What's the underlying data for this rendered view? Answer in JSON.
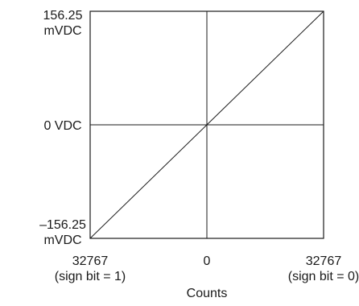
{
  "chart_data": {
    "type": "line",
    "title": "",
    "xlabel": "Counts",
    "ylabel": "",
    "x_ticks": [
      {
        "lines": [
          "32767",
          "(sign bit = 1)"
        ],
        "value": -32767
      },
      {
        "lines": [
          "0"
        ],
        "value": 0
      },
      {
        "lines": [
          "32767",
          "(sign bit = 0)"
        ],
        "value": 32767
      }
    ],
    "y_ticks": [
      {
        "lines": [
          "156.25",
          "mVDC"
        ],
        "value": 156.25
      },
      {
        "lines": [
          "0 VDC"
        ],
        "value": 0
      },
      {
        "lines": [
          "–156.25",
          "mVDC"
        ],
        "value": -156.25
      }
    ],
    "xlim": [
      -32767,
      32767
    ],
    "ylim": [
      -156.25,
      156.25
    ],
    "y_unit": "mVDC",
    "grid": "center lines only",
    "series": [
      {
        "x": [
          -32767,
          0,
          32767
        ],
        "y": [
          -156.25,
          0,
          156.25
        ]
      }
    ]
  }
}
